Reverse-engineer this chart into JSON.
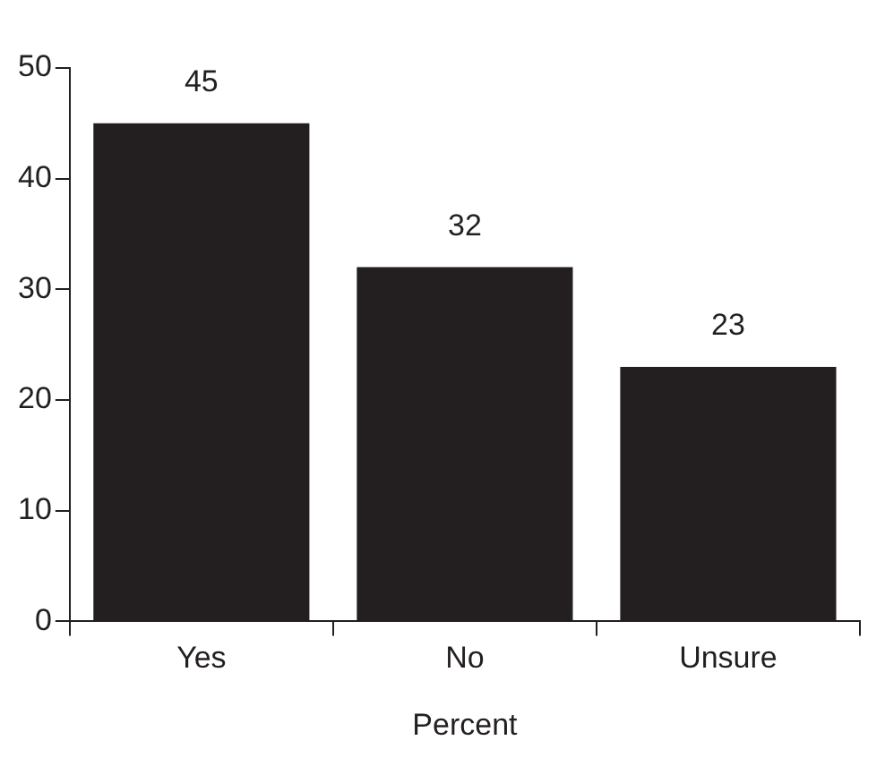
{
  "chart_data": {
    "type": "bar",
    "xlabel": "Percent",
    "categories": [
      "Yes",
      "No",
      "Unsure"
    ],
    "values": [
      45,
      32,
      23
    ],
    "color": "#231f20",
    "ylim": [
      0,
      50
    ],
    "yticks": [
      0,
      10,
      20,
      30,
      40,
      50
    ],
    "grid": false,
    "legend": false,
    "data_labels": true
  }
}
